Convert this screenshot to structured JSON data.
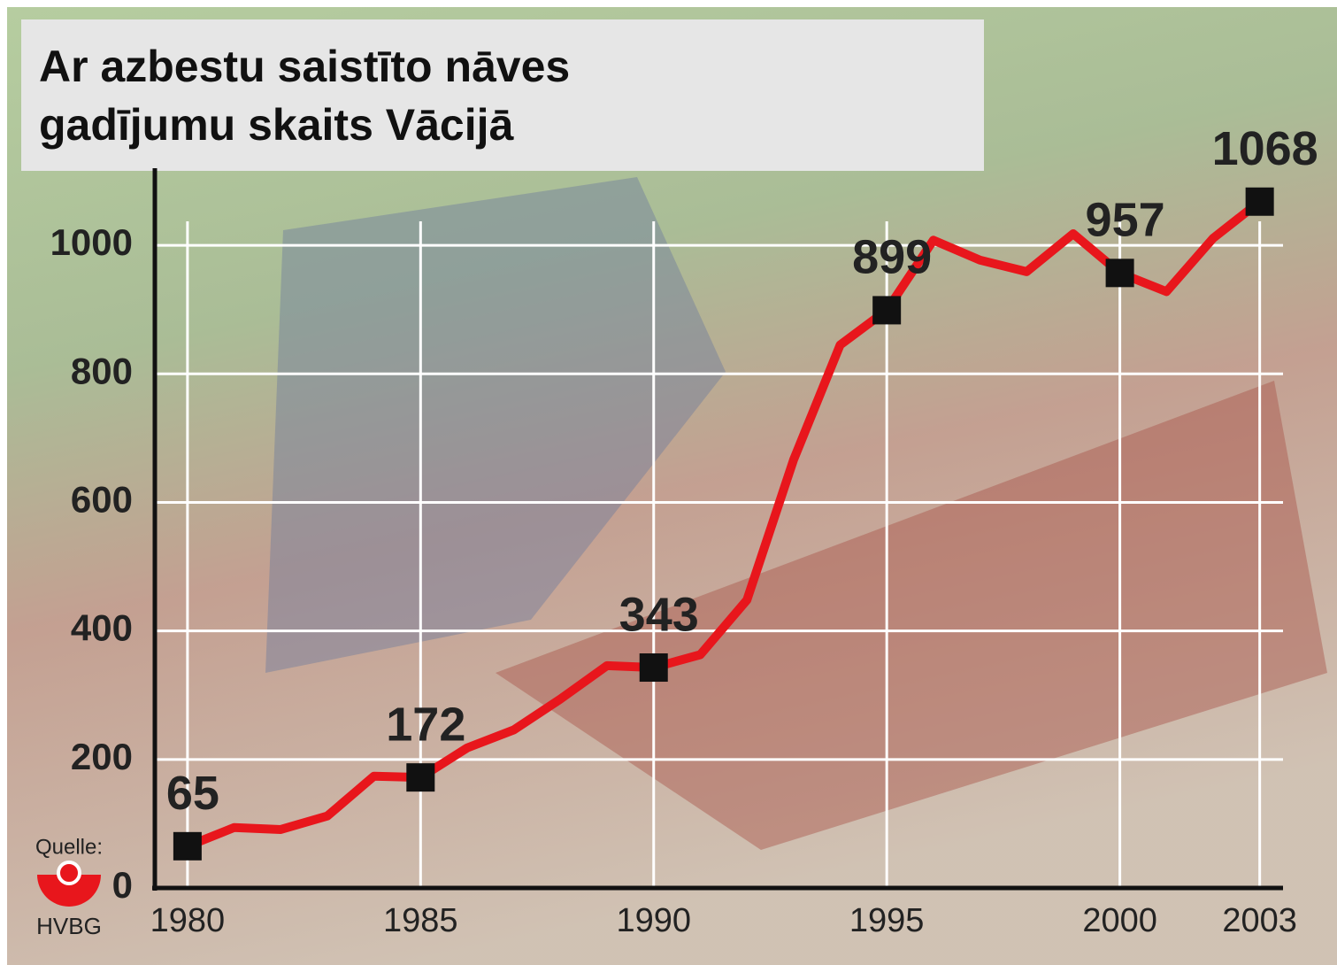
{
  "chart_data": {
    "type": "line",
    "title": "Ar azbestu saistīto nāves gadījumu skaits Vācijā",
    "x": [
      1980,
      1981,
      1982,
      1983,
      1984,
      1985,
      1986,
      1987,
      1988,
      1989,
      1990,
      1991,
      1992,
      1993,
      1994,
      1995,
      1996,
      1997,
      1998,
      1999,
      2000,
      2001,
      2002,
      2003
    ],
    "values": [
      65,
      94,
      91,
      112,
      174,
      172,
      218,
      246,
      294,
      346,
      343,
      363,
      448,
      666,
      845,
      899,
      1008,
      977,
      959,
      1018,
      957,
      928,
      1011,
      1068
    ],
    "value_labels": [
      "65",
      null,
      null,
      null,
      null,
      "172",
      null,
      null,
      null,
      null,
      "343",
      null,
      null,
      null,
      null,
      "899",
      null,
      null,
      null,
      null,
      "957",
      null,
      null,
      "1068"
    ],
    "color": "#e8161c",
    "marker_color": "#111111",
    "xlim": [
      1979.3,
      2003.5
    ],
    "xticks": [
      1980,
      1985,
      1990,
      1995,
      2000,
      2003
    ],
    "ylim": [
      0,
      1120
    ],
    "yticks": [
      0,
      200,
      400,
      600,
      800,
      1000
    ],
    "grid": true,
    "source_label": "Quelle:",
    "source": "HVBG"
  }
}
